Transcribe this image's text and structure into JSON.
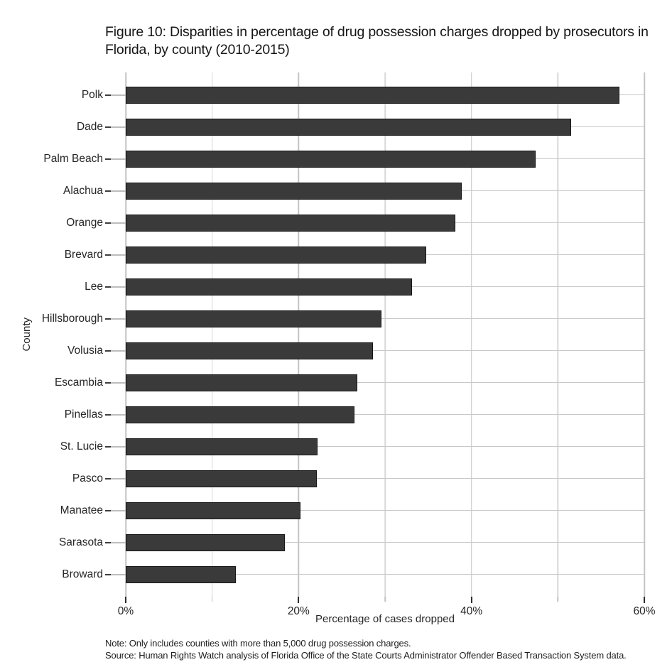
{
  "figure": {
    "title": "Figure 10: Disparities in percentage of drug possession charges dropped by prosecutors in Florida, by county (2010-2015)"
  },
  "chart_data": {
    "type": "bar",
    "orientation": "horizontal",
    "title": "Figure 10: Disparities in percentage of drug possession charges dropped by prosecutors in Florida, by county (2010-2015)",
    "categories": [
      "Polk",
      "Dade",
      "Palm Beach",
      "Alachua",
      "Orange",
      "Brevard",
      "Lee",
      "Hillsborough",
      "Volusia",
      "Escambia",
      "Pinellas",
      "St. Lucie",
      "Pasco",
      "Manatee",
      "Sarasota",
      "Broward"
    ],
    "values": [
      57.1,
      51.5,
      47.4,
      38.9,
      38.1,
      34.8,
      33.1,
      29.6,
      28.6,
      26.8,
      26.5,
      22.2,
      22.1,
      20.2,
      18.4,
      12.7
    ],
    "xlabel": "Percentage of cases dropped",
    "ylabel": "County",
    "xlim": [
      0,
      60
    ],
    "x_major_ticks": [
      0,
      20,
      40,
      60
    ],
    "x_minor_ticks": [
      10,
      30,
      50
    ],
    "x_tick_suffix": "%",
    "grid": true,
    "legend": false,
    "bar_color": "#3a3a3a",
    "bar_border_color": "#161616",
    "gridline_color": "#c9c9c9"
  },
  "notes": {
    "note": "Note: Only includes counties with more than 5,000 drug possession charges.",
    "source": "Source: Human Rights Watch analysis of Florida Office of the State Courts Administrator Offender Based Transaction System data."
  }
}
